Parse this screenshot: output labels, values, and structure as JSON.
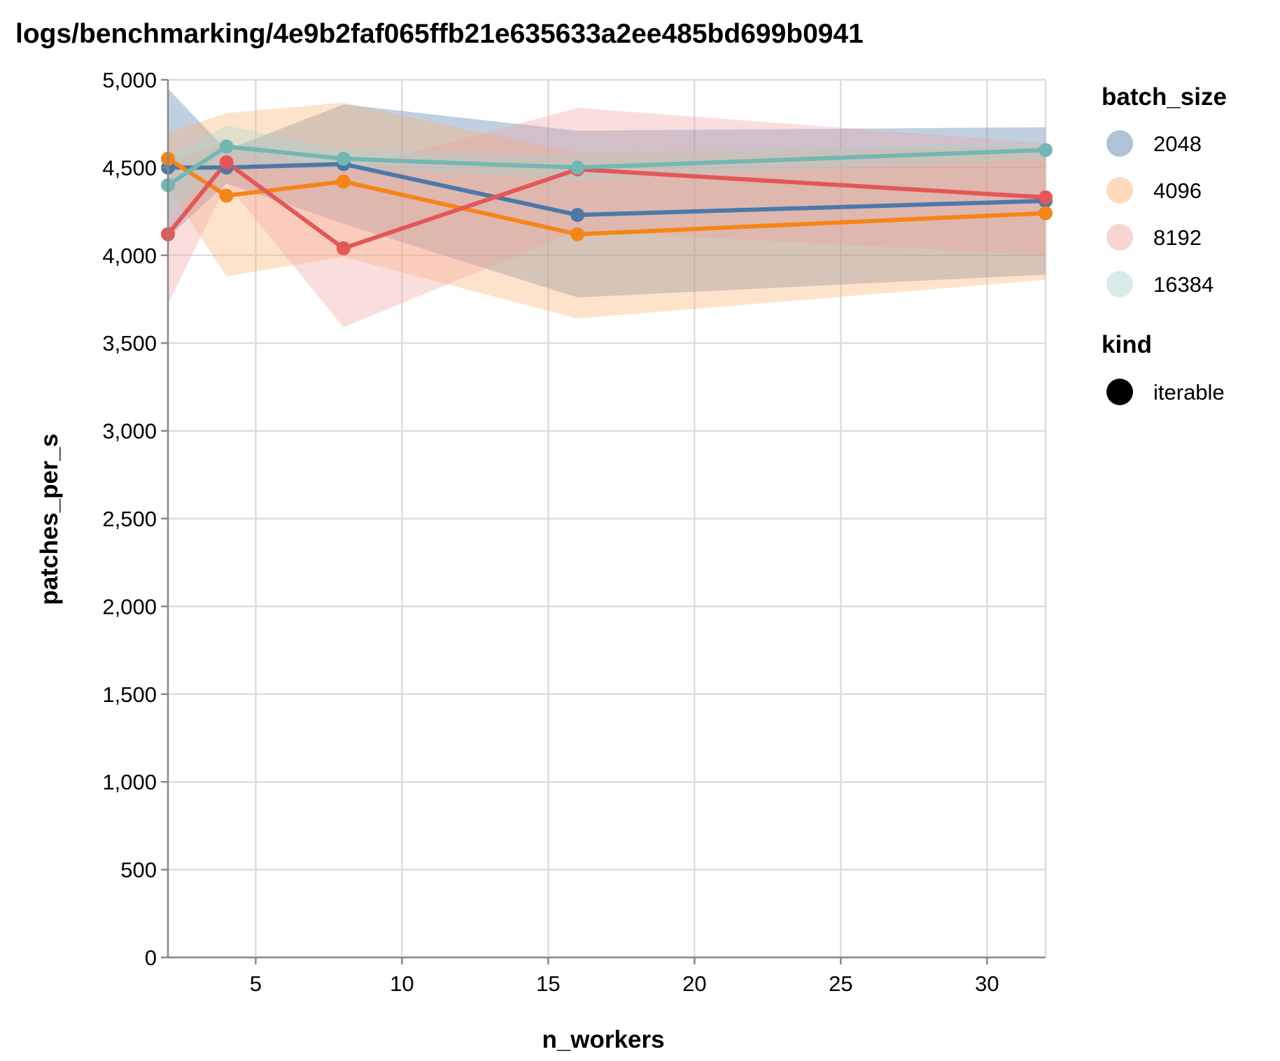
{
  "chart_data": {
    "type": "line",
    "title": "logs/benchmarking/4e9b2faf065ffb21e635633a2ee485bd699b0941",
    "xlabel": "n_workers",
    "ylabel": "patches_per_s",
    "xlim": [
      2,
      32
    ],
    "ylim": [
      0,
      5000
    ],
    "x_ticks": [
      5,
      10,
      15,
      20,
      25,
      30
    ],
    "y_ticks": [
      0,
      500,
      1000,
      1500,
      2000,
      2500,
      3000,
      3500,
      4000,
      4500,
      5000
    ],
    "y_tick_labels": [
      "0",
      "500",
      "1,000",
      "1,500",
      "2,000",
      "2,500",
      "3,000",
      "3,500",
      "4,000",
      "4,500",
      "5,000"
    ],
    "grid": true,
    "legend_position": "right",
    "legend": {
      "color_title": "batch_size",
      "shape_title": "kind",
      "shape_items": [
        {
          "label": "iterable"
        }
      ]
    },
    "x": [
      2,
      4,
      8,
      16,
      32
    ],
    "series": [
      {
        "name": "2048",
        "color": "#4c78a8",
        "band_color": "#4c78a8",
        "values": [
          4500,
          4500,
          4520,
          4230,
          4310
        ],
        "upper": [
          4950,
          4600,
          4860,
          4710,
          4730
        ],
        "lower": [
          4100,
          4410,
          4180,
          3760,
          3890
        ]
      },
      {
        "name": "4096",
        "color": "#f58518",
        "band_color": "#fcb06b",
        "values": [
          4550,
          4340,
          4420,
          4120,
          4240
        ],
        "upper": [
          4700,
          4810,
          4870,
          4580,
          4620
        ],
        "lower": [
          4390,
          3880,
          3990,
          3640,
          3860
        ]
      },
      {
        "name": "8192",
        "color": "#e45756",
        "band_color": "#f0a0a0",
        "values": [
          4120,
          4530,
          4040,
          4490,
          4330
        ],
        "upper": [
          4530,
          4640,
          4480,
          4840,
          4640
        ],
        "lower": [
          3720,
          4410,
          3590,
          4140,
          4000
        ]
      },
      {
        "name": "16384",
        "color": "#72b7b2",
        "band_color": "#a8d5d2",
        "values": [
          4400,
          4620,
          4550,
          4500,
          4600
        ],
        "upper": [
          4560,
          4740,
          4600,
          4570,
          4650
        ],
        "lower": [
          4240,
          4500,
          4500,
          4430,
          4550
        ]
      }
    ]
  }
}
